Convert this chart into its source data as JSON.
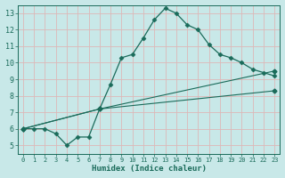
{
  "xlabel": "Humidex (Indice chaleur)",
  "bg_color": "#c8e8e8",
  "grid_color": "#b0d0d0",
  "line_color": "#1a6b5a",
  "xlim": [
    -0.5,
    23.5
  ],
  "ylim": [
    4.5,
    13.5
  ],
  "xticks": [
    0,
    1,
    2,
    3,
    4,
    5,
    6,
    7,
    8,
    9,
    10,
    11,
    12,
    13,
    14,
    15,
    16,
    17,
    18,
    19,
    20,
    21,
    22,
    23
  ],
  "yticks": [
    5,
    6,
    7,
    8,
    9,
    10,
    11,
    12,
    13
  ],
  "lines": [
    {
      "x": [
        0,
        1,
        2,
        3,
        4,
        5,
        6,
        7,
        8,
        9,
        10,
        11,
        12,
        13,
        14,
        15,
        16,
        17,
        18,
        19,
        20,
        21,
        22,
        23
      ],
      "y": [
        6.0,
        6.0,
        6.0,
        5.7,
        5.0,
        5.5,
        5.5,
        7.2,
        8.7,
        10.3,
        10.5,
        11.5,
        12.6,
        13.3,
        13.0,
        12.3,
        12.0,
        11.1,
        10.5,
        10.3,
        10.0,
        9.6,
        9.4,
        9.2
      ]
    },
    {
      "x": [
        0,
        7,
        23
      ],
      "y": [
        6.0,
        7.2,
        9.5
      ]
    },
    {
      "x": [
        0,
        7,
        23
      ],
      "y": [
        6.0,
        7.2,
        8.3
      ]
    }
  ]
}
